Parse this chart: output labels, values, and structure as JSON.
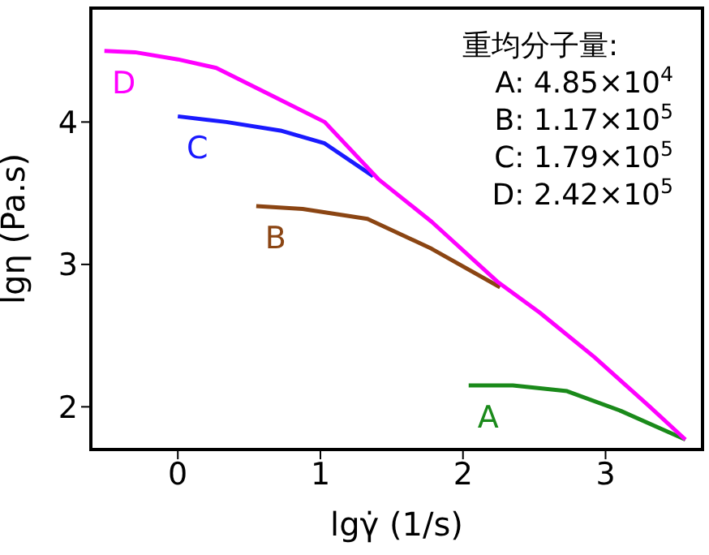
{
  "chart_data": {
    "type": "line",
    "xlabel": "lgγ̇ (1/s)",
    "ylabel": "lgη (Pa.s)",
    "xlim": [
      -0.61,
      3.68
    ],
    "ylim": [
      1.7,
      4.8
    ],
    "xticks": [
      0,
      1,
      2,
      3
    ],
    "yticks": [
      2,
      3,
      4
    ],
    "grid": false,
    "legend": false,
    "marker": "none",
    "line_style": "solid",
    "annotations": [
      "重均分子量:",
      "A: 4.85×10$^{4}$",
      "B: 1.17×10$^{5}$",
      "C: 1.79×10$^{5}$",
      "D: 2.42×10$^{5}$"
    ],
    "series": [
      {
        "name": "A",
        "color": "#1a8a1a",
        "x": [
          2.04,
          2.35,
          2.73,
          3.11,
          3.56
        ],
        "values": [
          2.15,
          2.15,
          2.11,
          1.97,
          1.77
        ]
      },
      {
        "name": "B",
        "color": "#8b4513",
        "x": [
          0.55,
          0.875,
          1.33,
          1.78,
          2.26
        ],
        "values": [
          3.41,
          3.39,
          3.32,
          3.11,
          2.84
        ]
      },
      {
        "name": "C",
        "color": "#1a1aff",
        "x": [
          0,
          0.34,
          0.72,
          1.03,
          1.37
        ],
        "values": [
          4.04,
          4.0,
          3.94,
          3.85,
          3.62
        ]
      },
      {
        "name": "D",
        "color": "#ff00ff",
        "x": [
          -0.515,
          -0.3,
          0,
          0.27,
          0.65,
          1.03,
          1.405,
          1.78,
          2.24,
          2.54,
          2.92,
          3.3,
          3.56
        ],
        "values": [
          4.5,
          4.49,
          4.44,
          4.38,
          4.19,
          4.0,
          3.6,
          3.3,
          2.88,
          2.66,
          2.35,
          2.01,
          1.77
        ]
      }
    ]
  }
}
